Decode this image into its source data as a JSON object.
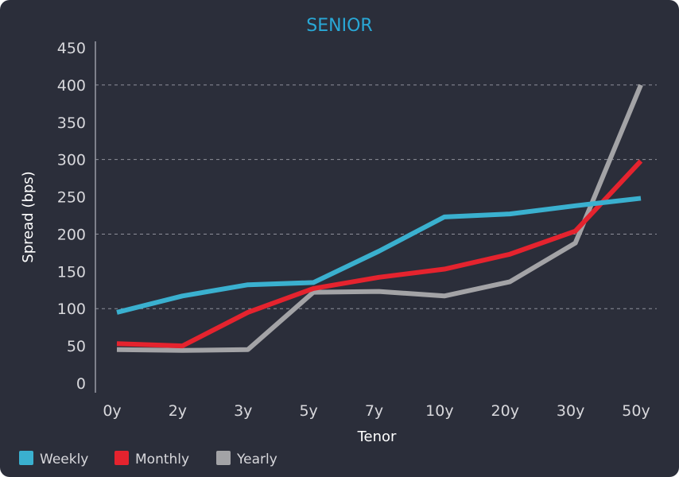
{
  "chart_data": {
    "type": "line",
    "title": "SENIOR",
    "xlabel": "Tenor",
    "ylabel": "Spread (bps)",
    "categories": [
      "0y",
      "2y",
      "3y",
      "5y",
      "7y",
      "10y",
      "20y",
      "30y",
      "50y"
    ],
    "yticks": [
      "0",
      "50",
      "100",
      "150",
      "200",
      "250",
      "300",
      "350",
      "400",
      "450"
    ],
    "ylim": [
      0,
      450
    ],
    "grid": true,
    "legend_position": "bottom-left",
    "series": [
      {
        "name": "Weekly",
        "color": "#3ab0cf",
        "values": [
          95,
          117,
          132,
          135,
          177,
          223,
          227,
          238,
          248
        ]
      },
      {
        "name": "Monthly",
        "color": "#e5232e",
        "values": [
          53,
          50,
          95,
          127,
          142,
          153,
          173,
          204,
          298
        ]
      },
      {
        "name": "Yearly",
        "color": "#a3a3a6",
        "values": [
          45,
          44,
          45,
          122,
          123,
          117,
          136,
          188,
          400
        ]
      }
    ]
  }
}
